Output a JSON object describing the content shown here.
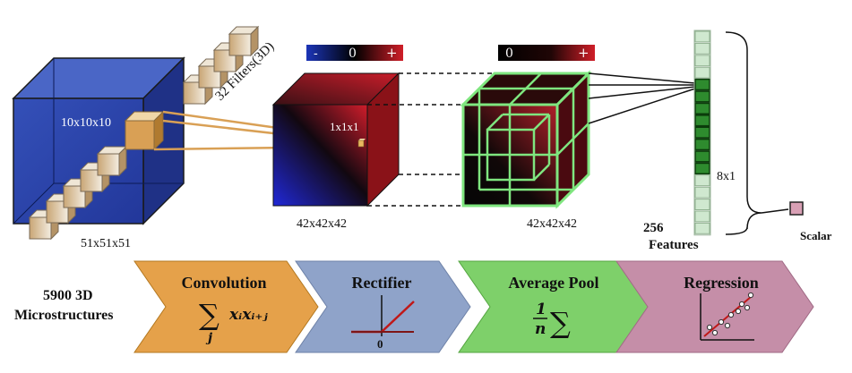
{
  "input": {
    "volume_label": "51x51x51",
    "patch_label": "10x10x10",
    "filters_label": "32 Filters(3D)"
  },
  "conv_output": {
    "size_label": "42x42x42",
    "unit_label": "1x1x1",
    "colorbar": {
      "minus": "-",
      "zero": "0",
      "plus": "+"
    }
  },
  "pool_output": {
    "size_label": "42x42x42",
    "colorbar": {
      "zero": "0",
      "plus": "+"
    }
  },
  "features": {
    "count_label": "256",
    "features_label": "Features",
    "group_label": "8x1"
  },
  "output": {
    "label": "Scalar"
  },
  "dataset": {
    "line1": "5900 3D",
    "line2": "Microstructures"
  },
  "steps": [
    {
      "title": "Convolution",
      "color": "#e5a14a"
    },
    {
      "title": "Rectifier",
      "color": "#8fa3c9",
      "axis_zero": "0"
    },
    {
      "title": "Average Pool",
      "color": "#7ed06a"
    },
    {
      "title": "Regression",
      "color": "#c58ea8"
    }
  ],
  "formulas": {
    "conv_sum": "∑",
    "conv_index": "j",
    "conv_term": "xᵢxᵢ₊ⱼ",
    "pool_num": "1",
    "pool_den": "n",
    "pool_sum": "∑"
  }
}
